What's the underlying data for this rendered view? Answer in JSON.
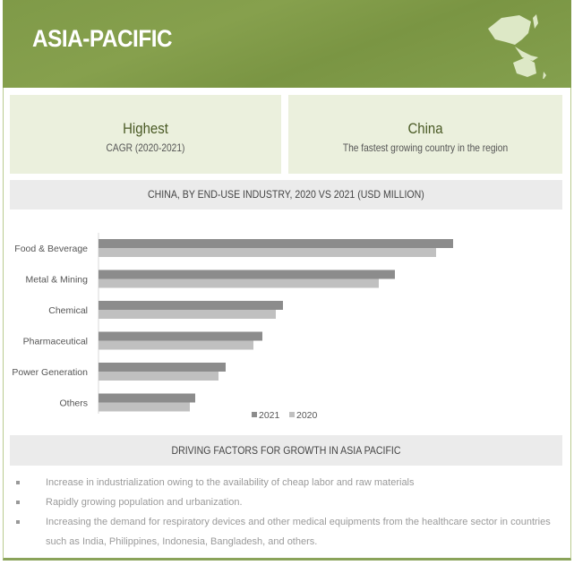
{
  "header": {
    "title": "ASIA-PACIFIC",
    "map_icon": "asia-pacific-map-icon"
  },
  "highlights": [
    {
      "title": "Highest",
      "subtitle": "CAGR (2020-2021)"
    },
    {
      "title": "China",
      "subtitle": "The fastest growing country in the region"
    }
  ],
  "chart_data": {
    "type": "bar",
    "orientation": "horizontal",
    "title": "CHINA, BY END-USE INDUSTRY, 2020 VS 2021 (USD MILLION)",
    "categories": [
      "Food & Beverage",
      "Metal & Mining",
      "Chemical",
      "Pharmaceutical",
      "Power Generation",
      "Others"
    ],
    "series": [
      {
        "name": "2021",
        "color": "#8c8c8c",
        "values": [
          396,
          331,
          206,
          183,
          142,
          108
        ]
      },
      {
        "name": "2020",
        "color": "#c0c0c0",
        "values": [
          377,
          313,
          198,
          173,
          134,
          102
        ]
      }
    ],
    "xlim": [
      0,
      400
    ],
    "grid": false,
    "legend": "bottom"
  },
  "drivers": {
    "title": "DRIVING FACTORS FOR GROWTH IN ASIA PACIFIC",
    "items": [
      "Increase in industrialization owing to the availability of cheap labor and raw materials",
      "Rapidly growing population and urbanization.",
      "Increasing the demand for respiratory devices and other medical equipments from the healthcare sector in countries such as India, Philippines, Indonesia, Bangladesh, and others."
    ]
  }
}
